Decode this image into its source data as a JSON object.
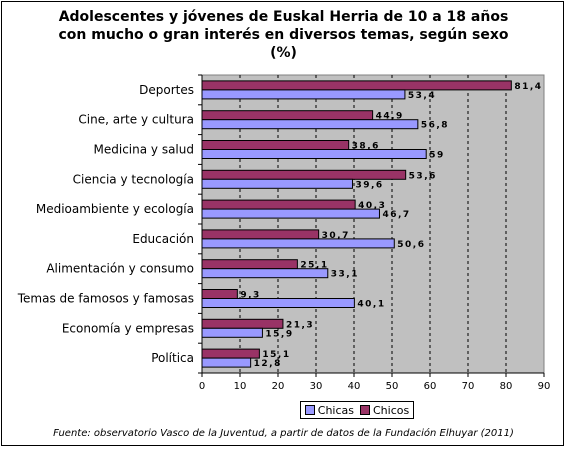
{
  "chart_data": {
    "type": "bar",
    "orientation": "horizontal",
    "title_lines": [
      "Adolescentes y jóvenes de Euskal Herria de 10 a 18 años",
      "con mucho o gran interés en diversos temas, según sexo",
      "(%)"
    ],
    "categories": [
      "Deportes",
      "Cine, arte y cultura",
      "Medicina y salud",
      "Ciencia y tecnología",
      "Medioambiente y ecología",
      "Educación",
      "Alimentación y consumo",
      "Temas de famosos y famosas",
      "Economía y empresas",
      "Política"
    ],
    "series": [
      {
        "name": "Chicos",
        "color": "#993366",
        "values": [
          81.4,
          44.9,
          38.6,
          53.6,
          40.3,
          30.7,
          25.1,
          9.3,
          21.3,
          15.1
        ],
        "labels": [
          "81,4",
          "44,9",
          "38,6",
          "53,6",
          "40,3",
          "30,7",
          "25,1",
          "9,3",
          "21,3",
          "15,1"
        ]
      },
      {
        "name": "Chicas",
        "color": "#9999ff",
        "values": [
          53.4,
          56.8,
          59,
          39.6,
          46.7,
          50.6,
          33.1,
          40.1,
          15.9,
          12.8
        ],
        "labels": [
          "53,4",
          "56,8",
          "59",
          "39,6",
          "46,7",
          "50,6",
          "33,1",
          "40,1",
          "15,9",
          "12,8"
        ]
      }
    ],
    "xlim": [
      0,
      90
    ],
    "xticks": [
      0,
      10,
      20,
      30,
      40,
      50,
      60,
      70,
      80,
      90
    ],
    "grid": "vertical-dashed",
    "plot_background": "#c0c0c0",
    "legend": {
      "placement": "bottom",
      "entries": [
        "Chicas",
        "Chicos"
      ]
    },
    "source": "Fuente: observatorio Vasco de la Juventud, a partir de datos de la Fundación Elhuyar (2011)"
  }
}
